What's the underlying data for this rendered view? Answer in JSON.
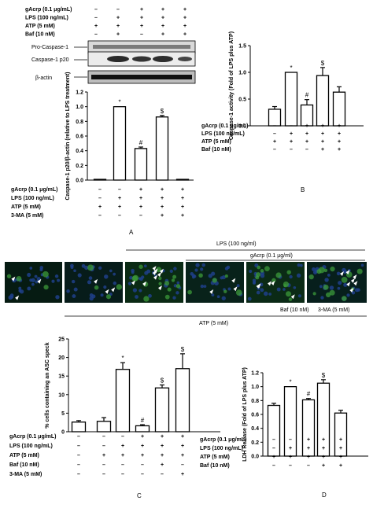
{
  "figure": {
    "blot": {
      "conditions": [
        {
          "label": "gAcrp (0.1 μg/mL)",
          "values": [
            "–",
            "–",
            "+",
            "+",
            "+"
          ]
        },
        {
          "label": "LPS (100 ng/mL)",
          "values": [
            "–",
            "+",
            "+",
            "+",
            "+"
          ]
        },
        {
          "label": "ATP (5 mM)",
          "values": [
            "+",
            "+",
            "+",
            "+",
            "+"
          ]
        },
        {
          "label": "Baf (10 nM)",
          "values": [
            "–",
            "+",
            "–",
            "+",
            "+"
          ]
        }
      ],
      "bands": [
        "Pro-Caspase-1",
        "Caspase-1 p20",
        "β-actin"
      ]
    },
    "microscopy": {
      "lps_label": "LPS (100 ng/ml)",
      "gacrp_label": "gAcrp (0.1 μg/ml)",
      "baf_label": "Baf (10 nM)",
      "ma_label": "3-MA (5 mM)",
      "atp_label": "ATP (5 mM)"
    },
    "panels": {
      "A": "A",
      "B": "B",
      "C": "C",
      "D": "D"
    }
  },
  "chart_data": [
    {
      "id": "A",
      "type": "bar",
      "ylabel": "Caspase-1 p20/β-actin (relative to LPS treatment)",
      "ylim": [
        0,
        1.2
      ],
      "yticks": [
        "0.0",
        "0.2",
        "0.4",
        "0.6",
        "0.8",
        "1.0",
        "1.2"
      ],
      "values": [
        0.01,
        1.0,
        0.43,
        0.86,
        0.01
      ],
      "errors": [
        0,
        0,
        0.02,
        0.02,
        0
      ],
      "marks": [
        "",
        "*",
        "#",
        "$",
        ""
      ],
      "conditions": [
        {
          "label": "gAcrp (0.1 μg/mL)",
          "values": [
            "–",
            "–",
            "+",
            "+",
            "+"
          ]
        },
        {
          "label": "LPS (100 ng/mL)",
          "values": [
            "–",
            "+",
            "+",
            "+",
            "+"
          ]
        },
        {
          "label": "ATP (5 mM)",
          "values": [
            "+",
            "+",
            "+",
            "+",
            "+"
          ]
        },
        {
          "label": "3-MA (5 mM)",
          "values": [
            "–",
            "–",
            "–",
            "+",
            "+"
          ]
        }
      ]
    },
    {
      "id": "B",
      "type": "bar",
      "ylabel": "Caspase-1 activity (Fold of LPS plus ATP)",
      "ylim": [
        0,
        1.5
      ],
      "yticks": [
        "0.0",
        "0.5",
        "1.0",
        "1.5"
      ],
      "values": [
        0.31,
        1.0,
        0.39,
        0.94,
        0.63
      ],
      "errors": [
        0.05,
        0,
        0.1,
        0.15,
        0.1
      ],
      "marks": [
        "",
        "*",
        "#",
        "$",
        ""
      ],
      "conditions": [
        {
          "label": "gAcrp (0.1 μg/mL)",
          "values": [
            "–",
            "–",
            "+",
            "+",
            "+"
          ]
        },
        {
          "label": "LPS (100 ng/mL)",
          "values": [
            "–",
            "+",
            "+",
            "+",
            "+"
          ]
        },
        {
          "label": "ATP (5 mM)",
          "values": [
            "+",
            "+",
            "+",
            "+",
            "+"
          ]
        },
        {
          "label": "Baf (10 nM)",
          "values": [
            "–",
            "–",
            "–",
            "+",
            "+"
          ]
        }
      ]
    },
    {
      "id": "C",
      "type": "bar",
      "ylabel": "% cells containing an ASC speck",
      "ylim": [
        0,
        25
      ],
      "yticks": [
        "0",
        "5",
        "10",
        "15",
        "20",
        "25"
      ],
      "values": [
        2.6,
        2.8,
        16.8,
        1.6,
        11.8,
        17.0
      ],
      "errors": [
        0.4,
        1.0,
        1.8,
        0.3,
        0.8,
        4.0
      ],
      "marks": [
        "",
        "",
        "*",
        "#",
        "$",
        "$"
      ],
      "conditions": [
        {
          "label": "gAcrp (0.1 μg/mL)",
          "values": [
            "–",
            "–",
            "–",
            "+",
            "+",
            "+"
          ]
        },
        {
          "label": "LPS (100 ng/mL)",
          "values": [
            "–",
            "–",
            "+",
            "+",
            "+",
            "+"
          ]
        },
        {
          "label": "ATP (5 mM)",
          "values": [
            "–",
            "+",
            "+",
            "+",
            "+",
            "+"
          ]
        },
        {
          "label": "Baf (10 nM)",
          "values": [
            "–",
            "–",
            "–",
            "–",
            "+",
            "–"
          ]
        },
        {
          "label": "3-MA (5 mM)",
          "values": [
            "–",
            "–",
            "–",
            "–",
            "–",
            "+"
          ]
        }
      ]
    },
    {
      "id": "D",
      "type": "bar",
      "ylabel": "LDH Release (Fold of LPS plus ATP)",
      "ylim": [
        0.0,
        1.2
      ],
      "yticks": [
        "0.0",
        "0.2",
        "0.4",
        "0.6",
        "0.8",
        "1.0",
        "1.2"
      ],
      "values": [
        0.73,
        1.0,
        0.81,
        1.05,
        0.62
      ],
      "errors": [
        0.03,
        0,
        0.02,
        0.05,
        0.04
      ],
      "marks": [
        "",
        "*",
        "#",
        "$",
        ""
      ],
      "conditions": [
        {
          "label": "gAcrp (0.1 μg/mL)",
          "values": [
            "–",
            "–",
            "+",
            "+",
            "+"
          ]
        },
        {
          "label": "LPS (100 ng/mL)",
          "values": [
            "–",
            "+",
            "+",
            "+",
            "+"
          ]
        },
        {
          "label": "ATP (5 mM)",
          "values": [
            "+",
            "+",
            "+",
            "+",
            "+"
          ]
        },
        {
          "label": "Baf (10 nM)",
          "values": [
            "–",
            "–",
            "–",
            "+",
            "+"
          ]
        }
      ]
    }
  ]
}
